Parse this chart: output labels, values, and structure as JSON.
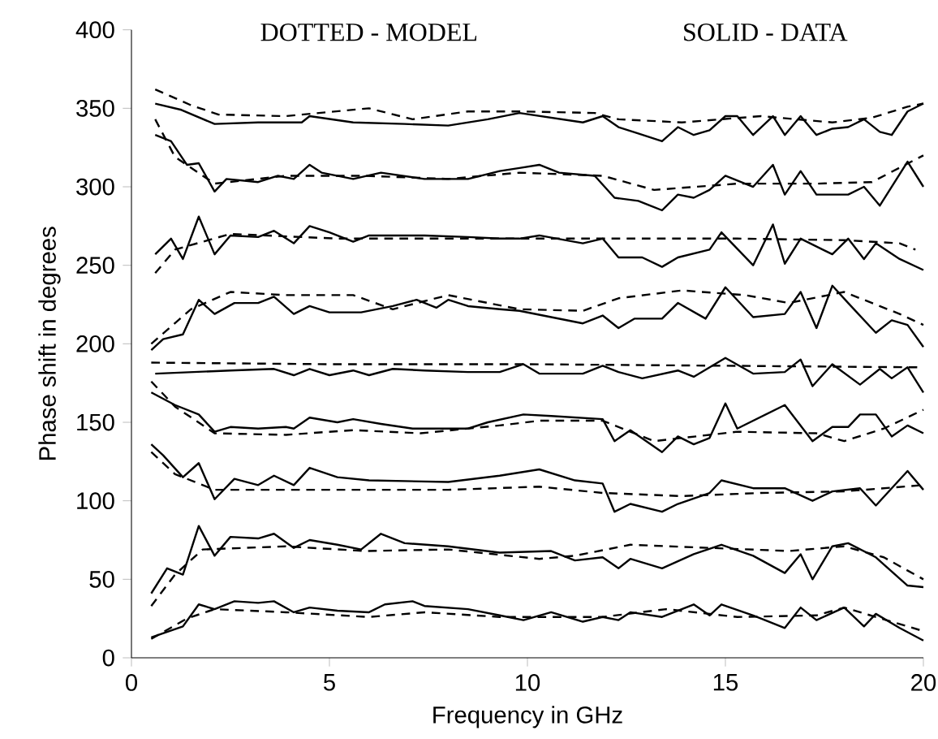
{
  "chart_data": {
    "type": "line",
    "xlabel": "Frequency in GHz",
    "ylabel": "Phase shift in degrees",
    "xlim": [
      0,
      20
    ],
    "ylim": [
      0,
      400
    ],
    "xticks": [
      0,
      5,
      10,
      15,
      20
    ],
    "yticks": [
      0,
      50,
      100,
      150,
      200,
      250,
      300,
      350,
      400
    ],
    "annotations": [
      "DOTTED - MODEL",
      "SOLID - DATA"
    ],
    "line_style": "solid",
    "color": "#000000",
    "series": [
      {
        "x": [
          0.6,
          1.26,
          2.1,
          3.2,
          4.3,
          4.5,
          5.6,
          6.9,
          8,
          9,
          9.8,
          11.4,
          11.9,
          12.3,
          12.8,
          13.4,
          13.8,
          14.2,
          14.6,
          15,
          15.3,
          15.7,
          16.2,
          16.5,
          16.9,
          17.3,
          17.7,
          18.1,
          18.5,
          18.9,
          19.2,
          19.6,
          20
        ],
        "values": [
          353,
          349,
          340,
          341,
          341,
          345,
          341,
          340,
          339,
          343,
          347,
          341,
          345,
          338,
          334,
          329,
          338,
          333,
          336,
          345,
          345,
          333,
          345,
          333,
          345,
          333,
          337,
          338,
          343,
          335,
          333,
          348,
          353
        ]
      },
      {
        "line_style": "dashed",
        "x": [
          0.6,
          1.5,
          2.2,
          3.9,
          6,
          7.1,
          8.5,
          9.8,
          11.7,
          12.3,
          13.9,
          15.9,
          17.7,
          18.7,
          19.6,
          20
        ],
        "values": [
          362,
          352,
          346,
          345,
          350,
          343,
          348,
          348,
          347,
          343,
          341,
          345,
          341,
          344,
          351,
          353
        ]
      },
      {
        "x": [
          0.6,
          1,
          1.4,
          1.7,
          2.1,
          2.4,
          3.2,
          3.7,
          4.1,
          4.5,
          4.8,
          5.6,
          6.3,
          7.4,
          8.5,
          9.3,
          9.8,
          10.3,
          10.8,
          11.7,
          12.2,
          12.8,
          13.4,
          13.8,
          14.2,
          14.6,
          15,
          15.7,
          16.2,
          16.5,
          16.9,
          17.3,
          18.1,
          18.5,
          18.9,
          19.6,
          20
        ],
        "values": [
          333,
          329,
          314,
          315,
          297,
          305,
          303,
          307,
          305,
          314,
          309,
          305,
          309,
          305,
          305,
          310,
          312,
          314,
          309,
          307,
          293,
          291,
          285,
          295,
          293,
          298,
          307,
          300,
          314,
          295,
          310,
          295,
          295,
          300,
          288,
          316,
          300
        ]
      },
      {
        "line_style": "dashed",
        "x": [
          0.6,
          1.1,
          2.1,
          3.9,
          5.9,
          8,
          9.8,
          11.9,
          13.2,
          15.3,
          17.3,
          18.7,
          20
        ],
        "values": [
          343,
          319,
          302,
          307,
          307,
          305,
          309,
          307,
          298,
          302,
          302,
          303,
          320
        ]
      },
      {
        "x": [
          0.6,
          1,
          1.3,
          1.7,
          2.1,
          2.5,
          3.2,
          3.6,
          4.1,
          4.5,
          5,
          5.6,
          6,
          7.4,
          8.5,
          9.3,
          9.8,
          10.3,
          11.4,
          11.9,
          12.3,
          12.9,
          13.4,
          13.8,
          14.6,
          14.9,
          15.7,
          16.2,
          16.5,
          16.9,
          17.7,
          18.1,
          18.5,
          18.8,
          19.4,
          20
        ],
        "values": [
          257,
          267,
          254,
          281,
          257,
          269,
          268,
          272,
          264,
          275,
          271,
          265,
          269,
          269,
          268,
          267,
          267,
          269,
          264,
          267,
          255,
          255,
          249,
          255,
          260,
          271,
          250,
          276,
          251,
          267,
          257,
          267,
          254,
          264,
          254,
          247
        ]
      },
      {
        "line_style": "dashed",
        "x": [
          0.6,
          1.1,
          2.5,
          5.2,
          8,
          10,
          12.5,
          15.3,
          18,
          19.4,
          19.8
        ],
        "values": [
          245,
          260,
          270,
          267,
          267,
          267,
          267,
          267,
          266,
          264,
          260
        ]
      },
      {
        "x": [
          0.5,
          0.8,
          1.3,
          1.7,
          2.1,
          2.6,
          3.2,
          3.6,
          4.1,
          4.5,
          5,
          5.8,
          6.6,
          7.2,
          7.7,
          8,
          8.5,
          9.3,
          9.8,
          10.6,
          11.4,
          11.9,
          12.3,
          12.7,
          13.4,
          13.8,
          14.5,
          15,
          15.7,
          16.5,
          16.9,
          17.3,
          17.7,
          18.1,
          18.8,
          19.2,
          19.6,
          20
        ],
        "values": [
          196,
          203,
          206,
          228,
          219,
          226,
          226,
          230,
          219,
          224,
          220,
          220,
          224,
          228,
          223,
          228,
          224,
          222,
          221,
          217,
          213,
          218,
          210,
          216,
          216,
          226,
          216,
          236,
          217,
          219,
          233,
          210,
          237,
          226,
          207,
          215,
          212,
          198
        ]
      },
      {
        "line_style": "dashed",
        "x": [
          0.5,
          1.5,
          2.5,
          3.9,
          5.6,
          6.6,
          8,
          9.8,
          11.4,
          12.3,
          13.9,
          15.5,
          16.6,
          18,
          19.4,
          20
        ],
        "values": [
          200,
          222,
          233,
          231,
          231,
          222,
          231,
          222,
          221,
          229,
          234,
          231,
          226,
          233,
          219,
          212
        ]
      },
      {
        "x": [
          0.6,
          2.5,
          3.6,
          4.1,
          4.5,
          5,
          5.6,
          6,
          6.6,
          7.4,
          8.5,
          9.3,
          9.9,
          10.3,
          11.4,
          11.9,
          12.3,
          12.9,
          13.8,
          14.2,
          15,
          15.7,
          16.5,
          16.9,
          17.2,
          17.7,
          18.4,
          18.9,
          19.2,
          19.6,
          20
        ],
        "values": [
          181,
          183,
          184,
          180,
          184,
          180,
          183,
          180,
          184,
          183,
          182,
          182,
          187,
          181,
          181,
          186,
          182,
          178,
          183,
          179,
          191,
          181,
          182,
          190,
          173,
          187,
          174,
          184,
          178,
          185,
          169
        ]
      },
      {
        "line_style": "dashed",
        "x": [
          0.5,
          5,
          10,
          15,
          20
        ],
        "values": [
          188,
          187,
          187,
          186,
          185
        ]
      },
      {
        "x": [
          0.5,
          1.1,
          1.7,
          2.1,
          2.5,
          3.2,
          3.9,
          4.1,
          4.5,
          5.2,
          5.6,
          6.3,
          7.1,
          8,
          8.5,
          9,
          9.9,
          10.6,
          11.9,
          12.2,
          12.6,
          13.4,
          13.8,
          14.2,
          14.6,
          15,
          15.3,
          16.5,
          17.2,
          17.7,
          18.1,
          18.4,
          18.8,
          19.2,
          19.6,
          20
        ],
        "values": [
          169,
          161,
          155,
          144,
          147,
          146,
          147,
          146,
          153,
          150,
          152,
          149,
          146,
          146,
          146,
          150,
          155,
          154,
          152,
          138,
          145,
          131,
          141,
          136,
          140,
          162,
          146,
          161,
          138,
          147,
          147,
          155,
          155,
          141,
          148,
          143
        ]
      },
      {
        "line_style": "dashed",
        "x": [
          0.5,
          1.1,
          2.1,
          3.9,
          5.6,
          7.3,
          9.3,
          10.3,
          11.9,
          13.2,
          15.3,
          17.3,
          18,
          19,
          20
        ],
        "values": [
          176,
          160,
          143,
          142,
          145,
          143,
          148,
          151,
          151,
          138,
          144,
          143,
          138,
          146,
          158
        ]
      },
      {
        "x": [
          0.5,
          0.8,
          1.3,
          1.7,
          2.1,
          2.6,
          3.2,
          3.6,
          4.1,
          4.5,
          5.2,
          6,
          8,
          9.3,
          10.3,
          11.2,
          11.9,
          12.2,
          12.6,
          13.4,
          13.8,
          14.6,
          14.9,
          15.7,
          16.5,
          17.2,
          17.7,
          18.4,
          18.8,
          19.6,
          20
        ],
        "values": [
          136,
          129,
          115,
          124,
          101,
          114,
          110,
          116,
          110,
          121,
          115,
          113,
          112,
          116,
          120,
          113,
          111,
          93,
          98,
          93,
          98,
          105,
          113,
          108,
          108,
          100,
          106,
          108,
          97,
          119,
          107
        ]
      },
      {
        "line_style": "dashed",
        "x": [
          0.5,
          1.1,
          2.1,
          3.9,
          5.6,
          8,
          10.3,
          11.9,
          13.9,
          15.9,
          18,
          20
        ],
        "values": [
          131,
          117,
          107,
          107,
          107,
          107,
          109,
          105,
          103,
          105,
          106,
          110
        ]
      },
      {
        "x": [
          0.5,
          0.9,
          1.3,
          1.7,
          2.1,
          2.5,
          3.2,
          3.6,
          4.1,
          4.5,
          5.2,
          5.8,
          6.3,
          6.9,
          8,
          9.3,
          10.6,
          11.2,
          11.9,
          12.3,
          12.6,
          13.4,
          14.2,
          14.9,
          15.7,
          16.5,
          16.9,
          17.2,
          17.7,
          18.1,
          18.8,
          19.6,
          20
        ],
        "values": [
          41,
          57,
          53,
          84,
          65,
          77,
          76,
          79,
          70,
          75,
          72,
          69,
          79,
          73,
          71,
          67,
          68,
          62,
          64,
          57,
          63,
          57,
          66,
          72,
          65,
          54,
          66,
          50,
          71,
          73,
          64,
          46,
          45
        ]
      },
      {
        "line_style": "dashed",
        "x": [
          0.5,
          1.1,
          1.8,
          3.9,
          5.9,
          8,
          10.3,
          11.2,
          12.6,
          14.6,
          16.6,
          18,
          19,
          20
        ],
        "values": [
          33,
          53,
          69,
          71,
          68,
          69,
          63,
          65,
          72,
          70,
          68,
          71,
          64,
          50
        ]
      },
      {
        "x": [
          0.5,
          1.3,
          1.7,
          2.1,
          2.6,
          3.2,
          3.6,
          4.1,
          4.5,
          5.2,
          6,
          6.4,
          7.1,
          7.4,
          8.5,
          9.3,
          9.9,
          10.6,
          11.4,
          11.9,
          12.3,
          12.6,
          13.4,
          14.2,
          14.6,
          14.9,
          15.7,
          16.5,
          16.9,
          17.3,
          18,
          18.5,
          18.8,
          19.4,
          20
        ],
        "values": [
          13,
          20,
          34,
          31,
          36,
          35,
          36,
          29,
          32,
          30,
          29,
          34,
          36,
          33,
          31,
          27,
          24,
          29,
          23,
          26,
          24,
          29,
          26,
          34,
          27,
          34,
          27,
          19,
          32,
          24,
          32,
          20,
          28,
          19,
          11
        ]
      },
      {
        "line_style": "dashed",
        "x": [
          0.5,
          1.4,
          2.1,
          3.9,
          6,
          7.4,
          9.3,
          10.3,
          11.9,
          13.5,
          15.3,
          17.3,
          18,
          20
        ],
        "values": [
          12,
          25,
          31,
          29,
          26,
          29,
          26,
          26,
          26,
          31,
          26,
          27,
          32,
          17
        ]
      }
    ]
  }
}
